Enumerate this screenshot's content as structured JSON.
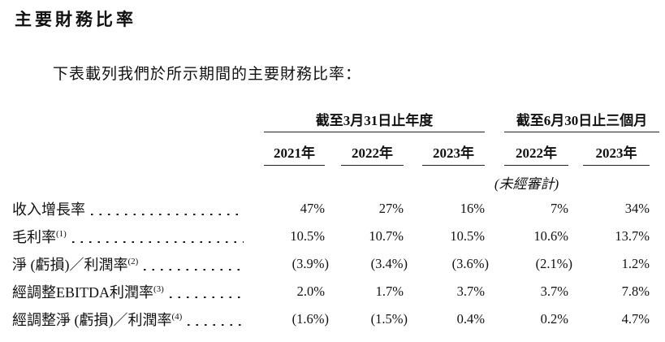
{
  "page": {
    "title": "主要財務比率",
    "intro": "下表載列我們於所示期間的主要財務比率："
  },
  "table": {
    "column_groups": [
      {
        "label": "截至3月31日止年度",
        "years": [
          "2021年",
          "2022年",
          "2023年"
        ]
      },
      {
        "label": "截至6月30日止三個月",
        "years": [
          "2022年",
          "2023年"
        ],
        "note": "(未經審計)"
      }
    ],
    "rows": [
      {
        "label": "收入增長率",
        "sup": "",
        "values": [
          "47%",
          "27%",
          "16%",
          "7%",
          "34%"
        ]
      },
      {
        "label": "毛利率",
        "sup": "(1)",
        "values": [
          "10.5%",
          "10.7%",
          "10.5%",
          "10.6%",
          "13.7%"
        ]
      },
      {
        "label": "淨 (虧損)／利潤率",
        "sup": "(2)",
        "values": [
          "(3.9%)",
          "(3.4%)",
          "(3.6%)",
          "(2.1%)",
          "1.2%"
        ]
      },
      {
        "label": "經調整EBITDA利潤率",
        "sup": "(3)",
        "values": [
          "2.0%",
          "1.7%",
          "3.7%",
          "3.7%",
          "7.8%"
        ]
      },
      {
        "label": "經調整淨 (虧損)／利潤率",
        "sup": "(4)",
        "values": [
          "(1.6%)",
          "(1.5%)",
          "0.4%",
          "0.2%",
          "4.7%"
        ]
      }
    ],
    "text_color": "#111111",
    "rule_color": "#222222"
  }
}
